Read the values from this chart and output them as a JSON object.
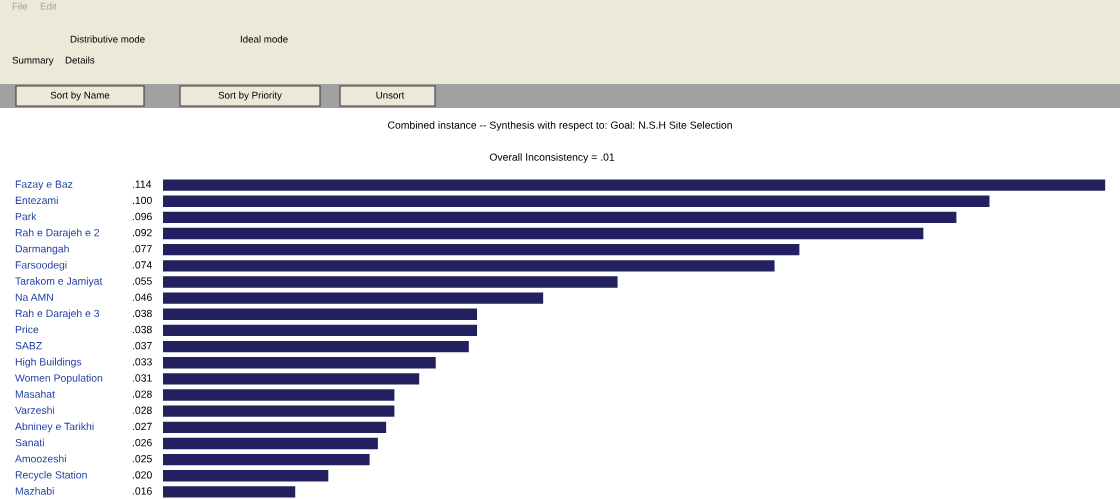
{
  "chart_data": {
    "type": "bar",
    "orientation": "horizontal",
    "title": "Combined instance -- Synthesis with respect to: Goal: N.S.H Site Selection",
    "subtitle": "Overall Inconsistency = .01",
    "categories": [
      "Fazay e Baz",
      "Entezami",
      "Park",
      "Rah e Darajeh e 2",
      "Darmangah",
      "Farsoodegi",
      "Tarakom e Jamiyat",
      "Na AMN",
      "Rah e Darajeh e 3",
      "Price",
      "SABZ",
      "High Buildings",
      "Women Population",
      "Masahat",
      "Varzeshi",
      "Abniney e Tarikhi",
      "Sanati",
      "Amoozeshi",
      "Recycle Station",
      "Mazhabi"
    ],
    "values": [
      0.114,
      0.1,
      0.096,
      0.092,
      0.077,
      0.074,
      0.055,
      0.046,
      0.038,
      0.038,
      0.037,
      0.033,
      0.031,
      0.028,
      0.028,
      0.027,
      0.026,
      0.025,
      0.02,
      0.016
    ],
    "value_labels": [
      ".114",
      ".100",
      ".096",
      ".092",
      ".077",
      ".074",
      ".055",
      ".046",
      ".038",
      ".038",
      ".037",
      ".033",
      ".031",
      ".028",
      ".028",
      ".027",
      ".026",
      ".025",
      ".020",
      ".016"
    ],
    "color": "#22205e",
    "annotations": [
      "File",
      "Edit",
      "Distributive mode",
      "Ideal mode",
      "Summary",
      "Details",
      "Sort by Name",
      "Sort by Priority",
      "Unsort"
    ]
  }
}
